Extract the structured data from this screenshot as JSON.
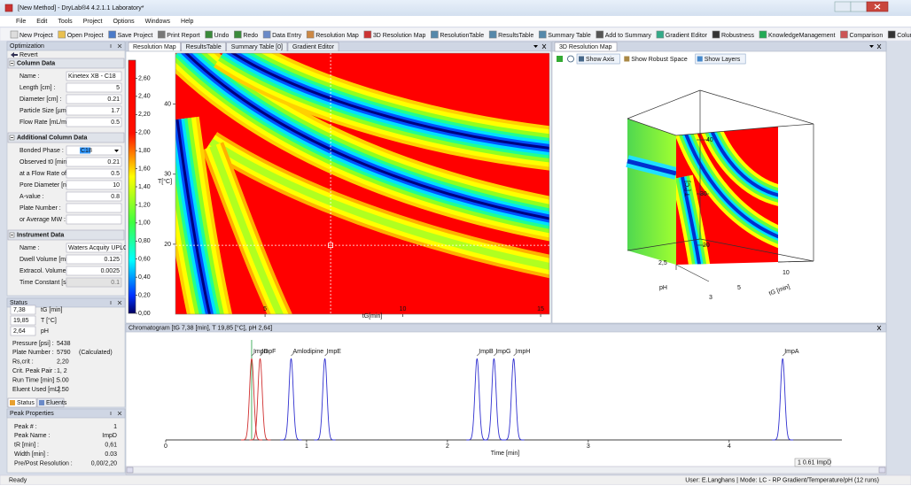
{
  "window": {
    "title": "[New Method] - DryLab®4 4.2.1.1 Laboratory*"
  },
  "menu": [
    "File",
    "Edit",
    "Tools",
    "Project",
    "Options",
    "Windows",
    "Help"
  ],
  "toolbar": [
    "New Project",
    "Open Project",
    "Save Project",
    "Print Report",
    "Undo",
    "Redo",
    "Data Entry",
    "Resolution Map",
    "3D Resolution Map",
    "ResolutionTable",
    "ResultsTable",
    "Summary Table",
    "Add to Summary",
    "Gradient Editor",
    "Robustness",
    "KnowledgeManagement",
    "Comparison",
    "Column Match"
  ],
  "optimization": {
    "title": "Optimization",
    "revert": "Revert",
    "sections": [
      {
        "title": "Column Data",
        "fields": [
          {
            "label": "Name :",
            "value": "Kinetex XB - C18"
          },
          {
            "label": "Length [cm] :",
            "value": "5"
          },
          {
            "label": "Diameter [cm] :",
            "value": "0.21"
          },
          {
            "label": "Particle Size [µm] :",
            "value": "1.7"
          },
          {
            "label": "Flow Rate [mL/min] :",
            "value": "0.5"
          }
        ]
      },
      {
        "title": "Additional Column Data",
        "fields": [
          {
            "label": "Bonded Phase :",
            "value": "C18"
          },
          {
            "label": "Observed t0 [min] :",
            "value": "0.21"
          },
          {
            "label": "at a Flow Rate of [mL/min] :",
            "value": "0.5"
          },
          {
            "label": "Pore Diameter [nm] :",
            "value": "10"
          },
          {
            "label": "A-value :",
            "value": "0.8"
          },
          {
            "label": "Plate Number :"
          },
          {
            "label": "or Average MW :"
          }
        ]
      },
      {
        "title": "Instrument Data",
        "fields": [
          {
            "label": "Name :",
            "value": "Waters Acquity UPLC Syste"
          },
          {
            "label": "Dwell Volume [mL] :",
            "value": "0.125"
          },
          {
            "label": "Extracol. Volume [mL] :",
            "value": "0.0025"
          },
          {
            "label": "Time Constant [s] :",
            "value": "0.1"
          }
        ]
      }
    ]
  },
  "status": {
    "title": "Status",
    "current": [
      {
        "value": "7,38",
        "unit": "tG [min]"
      },
      {
        "value": "19,85",
        "unit": "T [°C]"
      },
      {
        "value": "2,64",
        "unit": "pH"
      }
    ],
    "rows": [
      {
        "label": "Pressure [psi] :",
        "value": "5438"
      },
      {
        "label": "Plate Number :",
        "value": "5790",
        "note": "(Calculated)"
      },
      {
        "label": "Rs,crit :",
        "value": "2,20"
      },
      {
        "label": "Crit. Peak Pair :",
        "value": "1, 2"
      },
      {
        "label": "Run Time [min] :",
        "value": "5.00"
      },
      {
        "label": "Eluent Used [mL] :",
        "value": "2.50"
      }
    ],
    "tabs": [
      "Status",
      "Eluents"
    ]
  },
  "peak_properties": {
    "title": "Peak Properties",
    "rows": [
      {
        "label": "Peak # :",
        "value": "1"
      },
      {
        "label": "Peak Name :",
        "value": "ImpD"
      },
      {
        "label": "tR [min] :",
        "value": "0,61"
      },
      {
        "label": "Width [min] :",
        "value": "0.03"
      },
      {
        "label": "Pre/Post Resolution :",
        "value": "0,00/2,20"
      }
    ]
  },
  "center_tabs": [
    "Resolution Map",
    "ResultsTable",
    "Summary Table [0]",
    "Gradient Editor"
  ],
  "resolution_map": {
    "x_label": "tG[min]",
    "y_label": "T[°C]",
    "xlim": [
      1.75,
      15.32
    ],
    "xticks": [
      5,
      10,
      15
    ],
    "ylim": [
      10,
      47.3
    ],
    "yticks": [
      20,
      30,
      40
    ],
    "crosshair": {
      "x": 7.38,
      "y": 19.85
    },
    "colorbar": {
      "lim": [
        0,
        2.8
      ],
      "ticks": [
        {
          "value": 0,
          "label": "0,00"
        },
        {
          "value": 0.2,
          "label": "0,20"
        },
        {
          "value": 0.4,
          "label": "0,40"
        },
        {
          "value": 0.6,
          "label": "0,60"
        },
        {
          "value": 0.8,
          "label": "0,80"
        },
        {
          "value": 1,
          "label": "1,00"
        },
        {
          "value": 1.2,
          "label": "1,20"
        },
        {
          "value": 1.4,
          "label": "1,40"
        },
        {
          "value": 1.6,
          "label": "1,60"
        },
        {
          "value": 1.8,
          "label": "1,80"
        },
        {
          "value": 2,
          "label": "2,00"
        },
        {
          "value": 2.2,
          "label": "2,20"
        },
        {
          "value": 2.4,
          "label": "2,40"
        },
        {
          "value": 2.6,
          "label": "2,60"
        }
      ]
    }
  },
  "map3d": {
    "title": "3D Resolution Map",
    "buttons": [
      "Show Axis",
      "Show Robust Space",
      "Show Layers"
    ],
    "axis_labels": [
      "40",
      "30",
      "20",
      "T [°C]",
      "2,5",
      "pH",
      "3",
      "5",
      "10",
      "tG [min]"
    ]
  },
  "chromatogram": {
    "title": "Chromatogram [tG 7,38 [min], T 19,85 [°C], pH 2,64]",
    "x_label": "Time [min]",
    "xlim": [
      0,
      4.8
    ],
    "xticks": [
      0,
      1,
      2,
      3,
      4
    ],
    "peaks": [
      {
        "name": "ImpD",
        "time": 0.61,
        "color": "#d03030"
      },
      {
        "name": "ImpF",
        "time": 0.67,
        "color": "#d03030"
      },
      {
        "name": "Amlodipine",
        "time": 0.89,
        "color": "#3030d0"
      },
      {
        "name": "ImpE",
        "time": 1.13,
        "color": "#3030d0"
      },
      {
        "name": "ImpB",
        "time": 2.21,
        "color": "#3030d0"
      },
      {
        "name": "ImpG",
        "time": 2.33,
        "color": "#3030d0"
      },
      {
        "name": "ImpH",
        "time": 2.47,
        "color": "#3030d0"
      },
      {
        "name": "ImpA",
        "time": 4.38,
        "color": "#3030d0"
      }
    ],
    "tooltip": "1 0.61 ImpD"
  },
  "statusbar": {
    "left": "Ready",
    "right": "User: E.Langhans  |  Mode:  LC - RP Gradient/Temperature/pH (12 runs)"
  }
}
